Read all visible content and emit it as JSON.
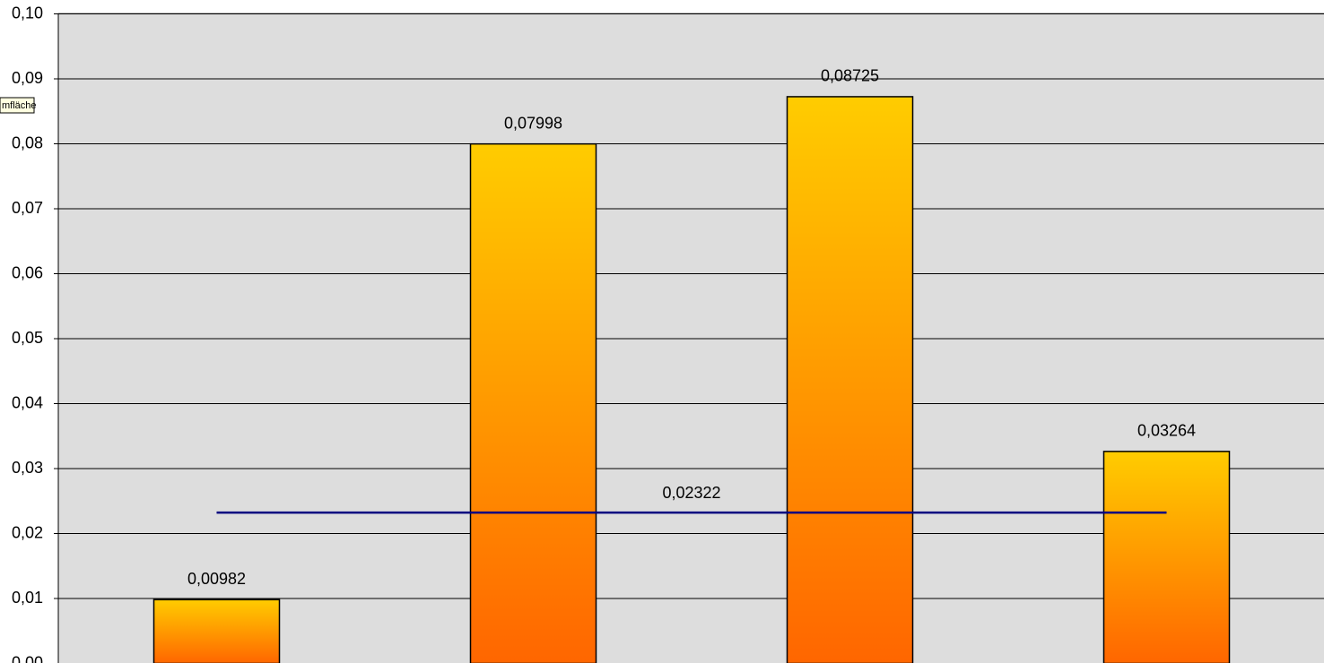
{
  "chart_data": {
    "type": "bar",
    "categories": [
      null,
      null,
      null,
      null
    ],
    "values": [
      0.00982,
      0.07998,
      0.08725,
      0.03264
    ],
    "value_labels": [
      "0,00982",
      "0,07998",
      "0,08725",
      "0,03264"
    ],
    "color_top": "#ffcc00",
    "color_bottom": "#ff6600",
    "ylim": [
      0,
      0.1
    ],
    "yticks": [
      {
        "value": 0,
        "label": "0,00"
      },
      {
        "value": 0.01,
        "label": "0,01"
      },
      {
        "value": 0.02,
        "label": "0,02"
      },
      {
        "value": 0.03,
        "label": "0,03"
      },
      {
        "value": 0.04,
        "label": "0,04"
      },
      {
        "value": 0.05,
        "label": "0,05"
      },
      {
        "value": 0.06,
        "label": "0,06"
      },
      {
        "value": 0.07,
        "label": "0,07"
      },
      {
        "value": 0.08,
        "label": "0,08"
      },
      {
        "value": 0.09,
        "label": "0,09"
      },
      {
        "value": 0.1,
        "label": "0,10"
      }
    ],
    "grid": true,
    "reference_line": {
      "value": 0.02322,
      "value_label": "0,02322",
      "color": "#000080"
    }
  },
  "tooltip": "mfläche"
}
